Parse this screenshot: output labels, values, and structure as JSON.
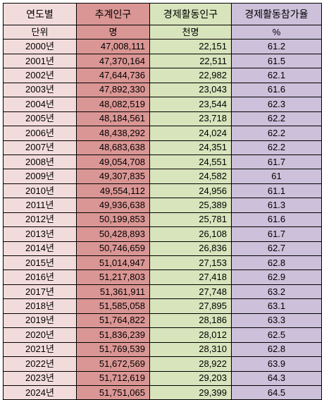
{
  "header": {
    "year": "연도별",
    "population": "추계인구",
    "economic": "경제활동인구",
    "rate": "경제활동참가율"
  },
  "units": {
    "year": "단위",
    "population": "명",
    "economic": "천명",
    "rate": "%"
  },
  "rows": [
    {
      "year": "2000년",
      "population": "47,008,111",
      "economic": "22,151",
      "rate": "61.2"
    },
    {
      "year": "2001년",
      "population": "47,370,164",
      "economic": "22,511",
      "rate": "61.5"
    },
    {
      "year": "2002년",
      "population": "47,644,736",
      "economic": "22,982",
      "rate": "62.1"
    },
    {
      "year": "2003년",
      "population": "47,892,330",
      "economic": "23,043",
      "rate": "61.6"
    },
    {
      "year": "2004년",
      "population": "48,082,519",
      "economic": "23,544",
      "rate": "62.3"
    },
    {
      "year": "2005년",
      "population": "48,184,561",
      "economic": "23,718",
      "rate": "62.2"
    },
    {
      "year": "2006년",
      "population": "48,438,292",
      "economic": "24,024",
      "rate": "62.2"
    },
    {
      "year": "2007년",
      "population": "48,683,638",
      "economic": "24,351",
      "rate": "62.2"
    },
    {
      "year": "2008년",
      "population": "49,054,708",
      "economic": "24,551",
      "rate": "61.7"
    },
    {
      "year": "2009년",
      "population": "49,307,835",
      "economic": "24,582",
      "rate": "61"
    },
    {
      "year": "2010년",
      "population": "49,554,112",
      "economic": "24,956",
      "rate": "61.1"
    },
    {
      "year": "2011년",
      "population": "49,936,638",
      "economic": "25,389",
      "rate": "61.3"
    },
    {
      "year": "2012년",
      "population": "50,199,853",
      "economic": "25,781",
      "rate": "61.6"
    },
    {
      "year": "2013년",
      "population": "50,428,893",
      "economic": "26,108",
      "rate": "61.7"
    },
    {
      "year": "2014년",
      "population": "50,746,659",
      "economic": "26,836",
      "rate": "62.7"
    },
    {
      "year": "2015년",
      "population": "51,014,947",
      "economic": "27,153",
      "rate": "62.8"
    },
    {
      "year": "2016년",
      "population": "51,217,803",
      "economic": "27,418",
      "rate": "62.9"
    },
    {
      "year": "2017년",
      "population": "51,361,911",
      "economic": "27,748",
      "rate": "63.2"
    },
    {
      "year": "2018년",
      "population": "51,585,058",
      "economic": "27,895",
      "rate": "63.1"
    },
    {
      "year": "2019년",
      "population": "51,764,822",
      "economic": "28,186",
      "rate": "63.3"
    },
    {
      "year": "2020년",
      "population": "51,836,239",
      "economic": "28,012",
      "rate": "62.5"
    },
    {
      "year": "2021년",
      "population": "51,769,539",
      "economic": "28,310",
      "rate": "62.8"
    },
    {
      "year": "2022년",
      "population": "51,672,569",
      "economic": "28,922",
      "rate": "63.9"
    },
    {
      "year": "2023년",
      "population": "51,712,619",
      "economic": "29,203",
      "rate": "64.3"
    },
    {
      "year": "2024년",
      "population": "51,751,065",
      "economic": "29,399",
      "rate": "64.5"
    }
  ]
}
